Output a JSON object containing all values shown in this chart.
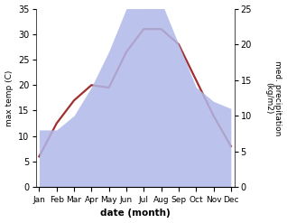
{
  "months": [
    "Jan",
    "Feb",
    "Mar",
    "Apr",
    "May",
    "Jun",
    "Jul",
    "Aug",
    "Sep",
    "Oct",
    "Nov",
    "Dec"
  ],
  "temperature": [
    6.0,
    12.5,
    17.0,
    20.0,
    19.5,
    26.5,
    31.0,
    31.0,
    28.0,
    21.0,
    14.0,
    8.0
  ],
  "precipitation": [
    8.0,
    8.0,
    10.0,
    14.0,
    19.0,
    25.0,
    25.0,
    26.0,
    20.0,
    14.0,
    12.0,
    11.0
  ],
  "temp_color": "#a03030",
  "precip_color": "#b0b8e8",
  "temp_ylim": [
    0,
    35
  ],
  "precip_ylim": [
    0,
    25
  ],
  "temp_yticks": [
    0,
    5,
    10,
    15,
    20,
    25,
    30,
    35
  ],
  "precip_yticks": [
    0,
    5,
    10,
    15,
    20,
    25
  ],
  "ylabel_left": "max temp (C)",
  "ylabel_right": "med. precipitation\n(kg/m2)",
  "xlabel": "date (month)",
  "fig_width": 3.18,
  "fig_height": 2.47,
  "dpi": 100
}
